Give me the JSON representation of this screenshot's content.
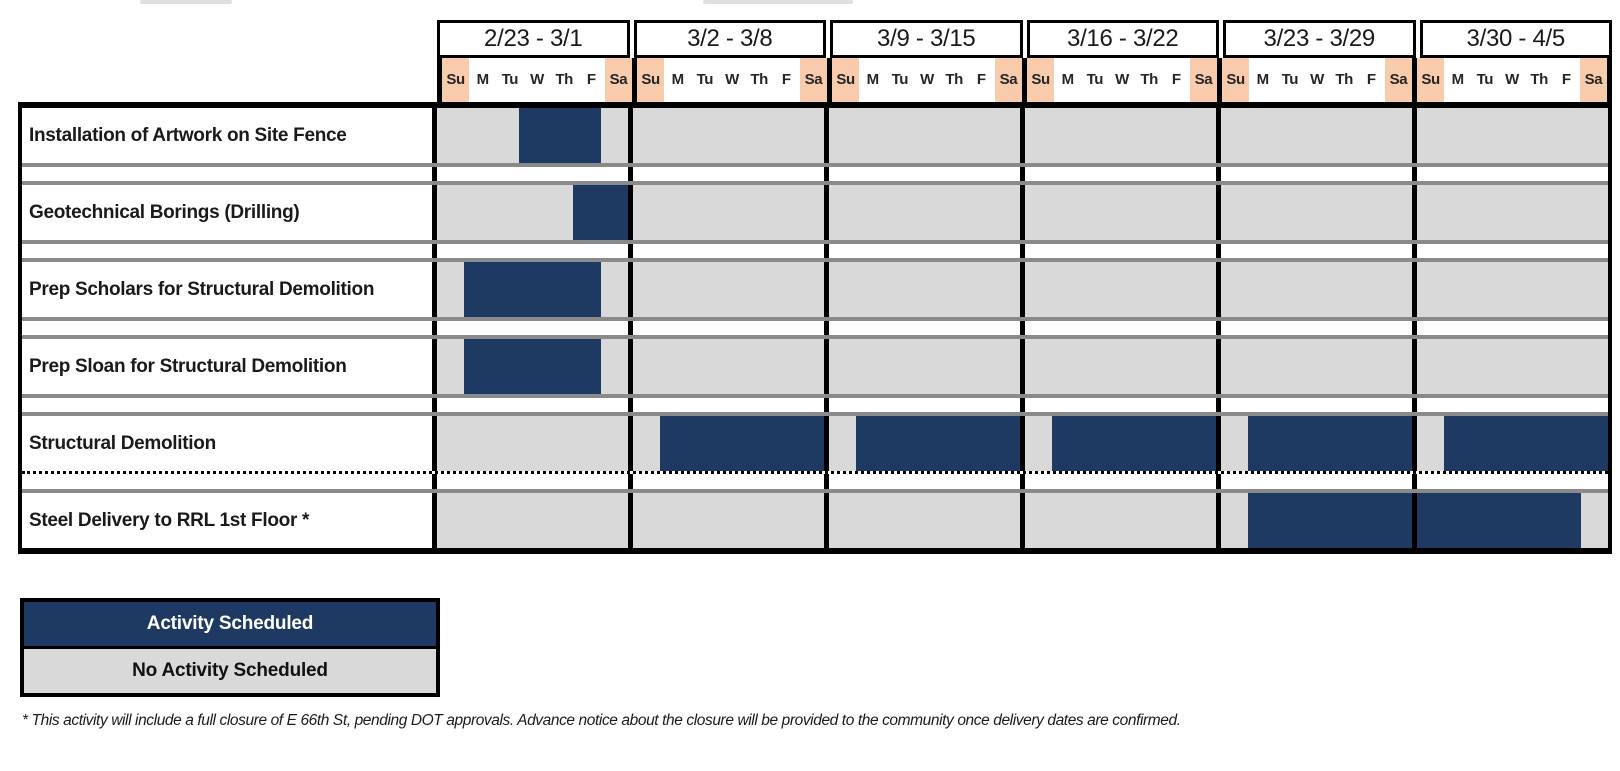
{
  "chart_data": {
    "type": "gantt",
    "weeks": [
      "2/23 - 3/1",
      "3/2 - 3/8",
      "3/9 - 3/15",
      "3/16 - 3/22",
      "3/23 - 3/29",
      "3/30 - 4/5"
    ],
    "day_names": [
      "Su",
      "M",
      "Tu",
      "W",
      "Th",
      "F",
      "Sa"
    ],
    "weekend_columns": [
      "Su",
      "Sa"
    ],
    "activities": [
      {
        "name": "Installation of Artwork on Site Fence",
        "scheduled": [
          {
            "week": "2/23 - 3/1",
            "days": [
              "W",
              "Th",
              "F"
            ]
          }
        ],
        "week_spans": {
          "0": [
            3,
            5
          ]
        },
        "separator_after": "solid"
      },
      {
        "name": "Geotechnical Borings (Drilling)",
        "scheduled": [
          {
            "week": "2/23 - 3/1",
            "days": [
              "F",
              "Sa"
            ]
          }
        ],
        "week_spans": {
          "0": [
            5,
            6
          ]
        },
        "separator_after": "solid"
      },
      {
        "name": "Prep Scholars for Structural Demolition",
        "scheduled": [
          {
            "week": "2/23 - 3/1",
            "days": [
              "M",
              "Tu",
              "W",
              "Th",
              "F"
            ]
          }
        ],
        "week_spans": {
          "0": [
            1,
            5
          ]
        },
        "separator_after": "solid"
      },
      {
        "name": "Prep Sloan for Structural Demolition",
        "scheduled": [
          {
            "week": "2/23 - 3/1",
            "days": [
              "M",
              "Tu",
              "W",
              "Th",
              "F"
            ]
          }
        ],
        "week_spans": {
          "0": [
            1,
            5
          ]
        },
        "separator_after": "solid"
      },
      {
        "name": "Structural Demolition",
        "scheduled": [
          {
            "week": "3/2 - 3/8",
            "days": [
              "M",
              "Tu",
              "W",
              "Th",
              "F",
              "Sa"
            ]
          },
          {
            "week": "3/9 - 3/15",
            "days": [
              "M",
              "Tu",
              "W",
              "Th",
              "F",
              "Sa"
            ]
          },
          {
            "week": "3/16 - 3/22",
            "days": [
              "M",
              "Tu",
              "W",
              "Th",
              "F",
              "Sa"
            ]
          },
          {
            "week": "3/23 - 3/29",
            "days": [
              "M",
              "Tu",
              "W",
              "Th",
              "F",
              "Sa"
            ]
          },
          {
            "week": "3/30 - 4/5",
            "days": [
              "M",
              "Tu",
              "W",
              "Th",
              "F",
              "Sa"
            ]
          }
        ],
        "week_spans": {
          "1": [
            1,
            6
          ],
          "2": [
            1,
            6
          ],
          "3": [
            1,
            6
          ],
          "4": [
            1,
            6
          ],
          "5": [
            1,
            6
          ]
        },
        "separator_after": "dotted"
      },
      {
        "name": "Steel Delivery to RRL 1st Floor *",
        "scheduled": [
          {
            "week": "3/23 - 3/29",
            "days": [
              "M",
              "Tu",
              "W",
              "Th",
              "F",
              "Sa"
            ]
          },
          {
            "week": "3/30 - 4/5",
            "days": [
              "Su",
              "M",
              "Tu",
              "W",
              "Th",
              "F"
            ]
          }
        ],
        "week_spans": {
          "4": [
            1,
            6
          ],
          "5": [
            0,
            5
          ]
        },
        "separator_after": "none"
      }
    ],
    "legend": [
      {
        "label": "Activity Scheduled",
        "color": "#1E3A63"
      },
      {
        "label": "No Activity Scheduled",
        "color": "#D9D9D9"
      }
    ],
    "footnote": "* This activity will include a full closure of E 66th St, pending DOT approvals. Advance notice about the closure will be provided to the community once delivery dates are confirmed.",
    "colors": {
      "scheduled_bar": "#1E3A63",
      "no_activity_fill": "#D9D9D9",
      "weekend_header": "#F8CBAD",
      "grid_border": "#000000",
      "separator_line": "#8a8a8a"
    },
    "layout": {
      "legend_position": "bottom-left",
      "grid": "weekly columns with thick black dividers"
    }
  }
}
